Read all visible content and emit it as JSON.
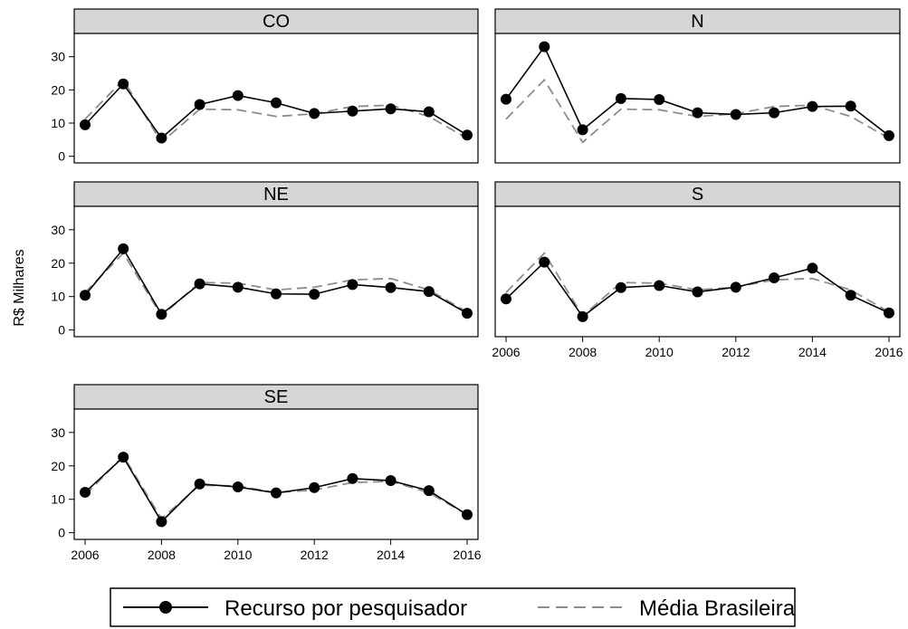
{
  "ylabel": "R$ Milhares",
  "legend": {
    "series_solid": "Recurso por pesquisador",
    "series_dashed": "Média Brasileira"
  },
  "colors": {
    "solid": "#000000",
    "dashed": "#8c8c8c",
    "strip": "#d6d6d6"
  },
  "chart_data": {
    "type": "line",
    "x": [
      2006,
      2007,
      2008,
      2009,
      2010,
      2011,
      2012,
      2013,
      2014,
      2015,
      2016
    ],
    "x_ticks": [
      "2006",
      "2008",
      "2010",
      "2012",
      "2014",
      "2016"
    ],
    "y_ticks": [
      "0",
      "10",
      "20",
      "30"
    ],
    "ylim": [
      -2,
      37
    ],
    "xlim": [
      2006,
      2016
    ],
    "ylabel": "R$ Milhares",
    "average_series": {
      "name": "Média Brasileira",
      "values": [
        11.2,
        23.0,
        4.2,
        14.2,
        14.0,
        12.0,
        12.8,
        15.0,
        15.4,
        12.0,
        5.4
      ]
    },
    "panels": [
      {
        "name": "CO",
        "values": [
          9.5,
          21.8,
          5.5,
          15.6,
          18.3,
          16.1,
          12.9,
          13.6,
          14.3,
          13.4,
          6.4
        ]
      },
      {
        "name": "N",
        "values": [
          17.2,
          33.0,
          8.0,
          17.4,
          17.1,
          13.1,
          12.6,
          13.1,
          15.0,
          15.1,
          6.2
        ]
      },
      {
        "name": "NE",
        "values": [
          10.4,
          24.3,
          4.7,
          13.8,
          12.8,
          10.8,
          10.7,
          13.6,
          12.7,
          11.5,
          5.0
        ]
      },
      {
        "name": "S",
        "values": [
          9.3,
          20.3,
          4.0,
          12.7,
          13.3,
          11.4,
          12.8,
          15.6,
          18.5,
          10.4,
          5.1
        ]
      },
      {
        "name": "SE",
        "values": [
          12.1,
          22.6,
          3.3,
          14.6,
          13.7,
          11.9,
          13.5,
          16.2,
          15.6,
          12.6,
          5.4
        ]
      }
    ]
  }
}
